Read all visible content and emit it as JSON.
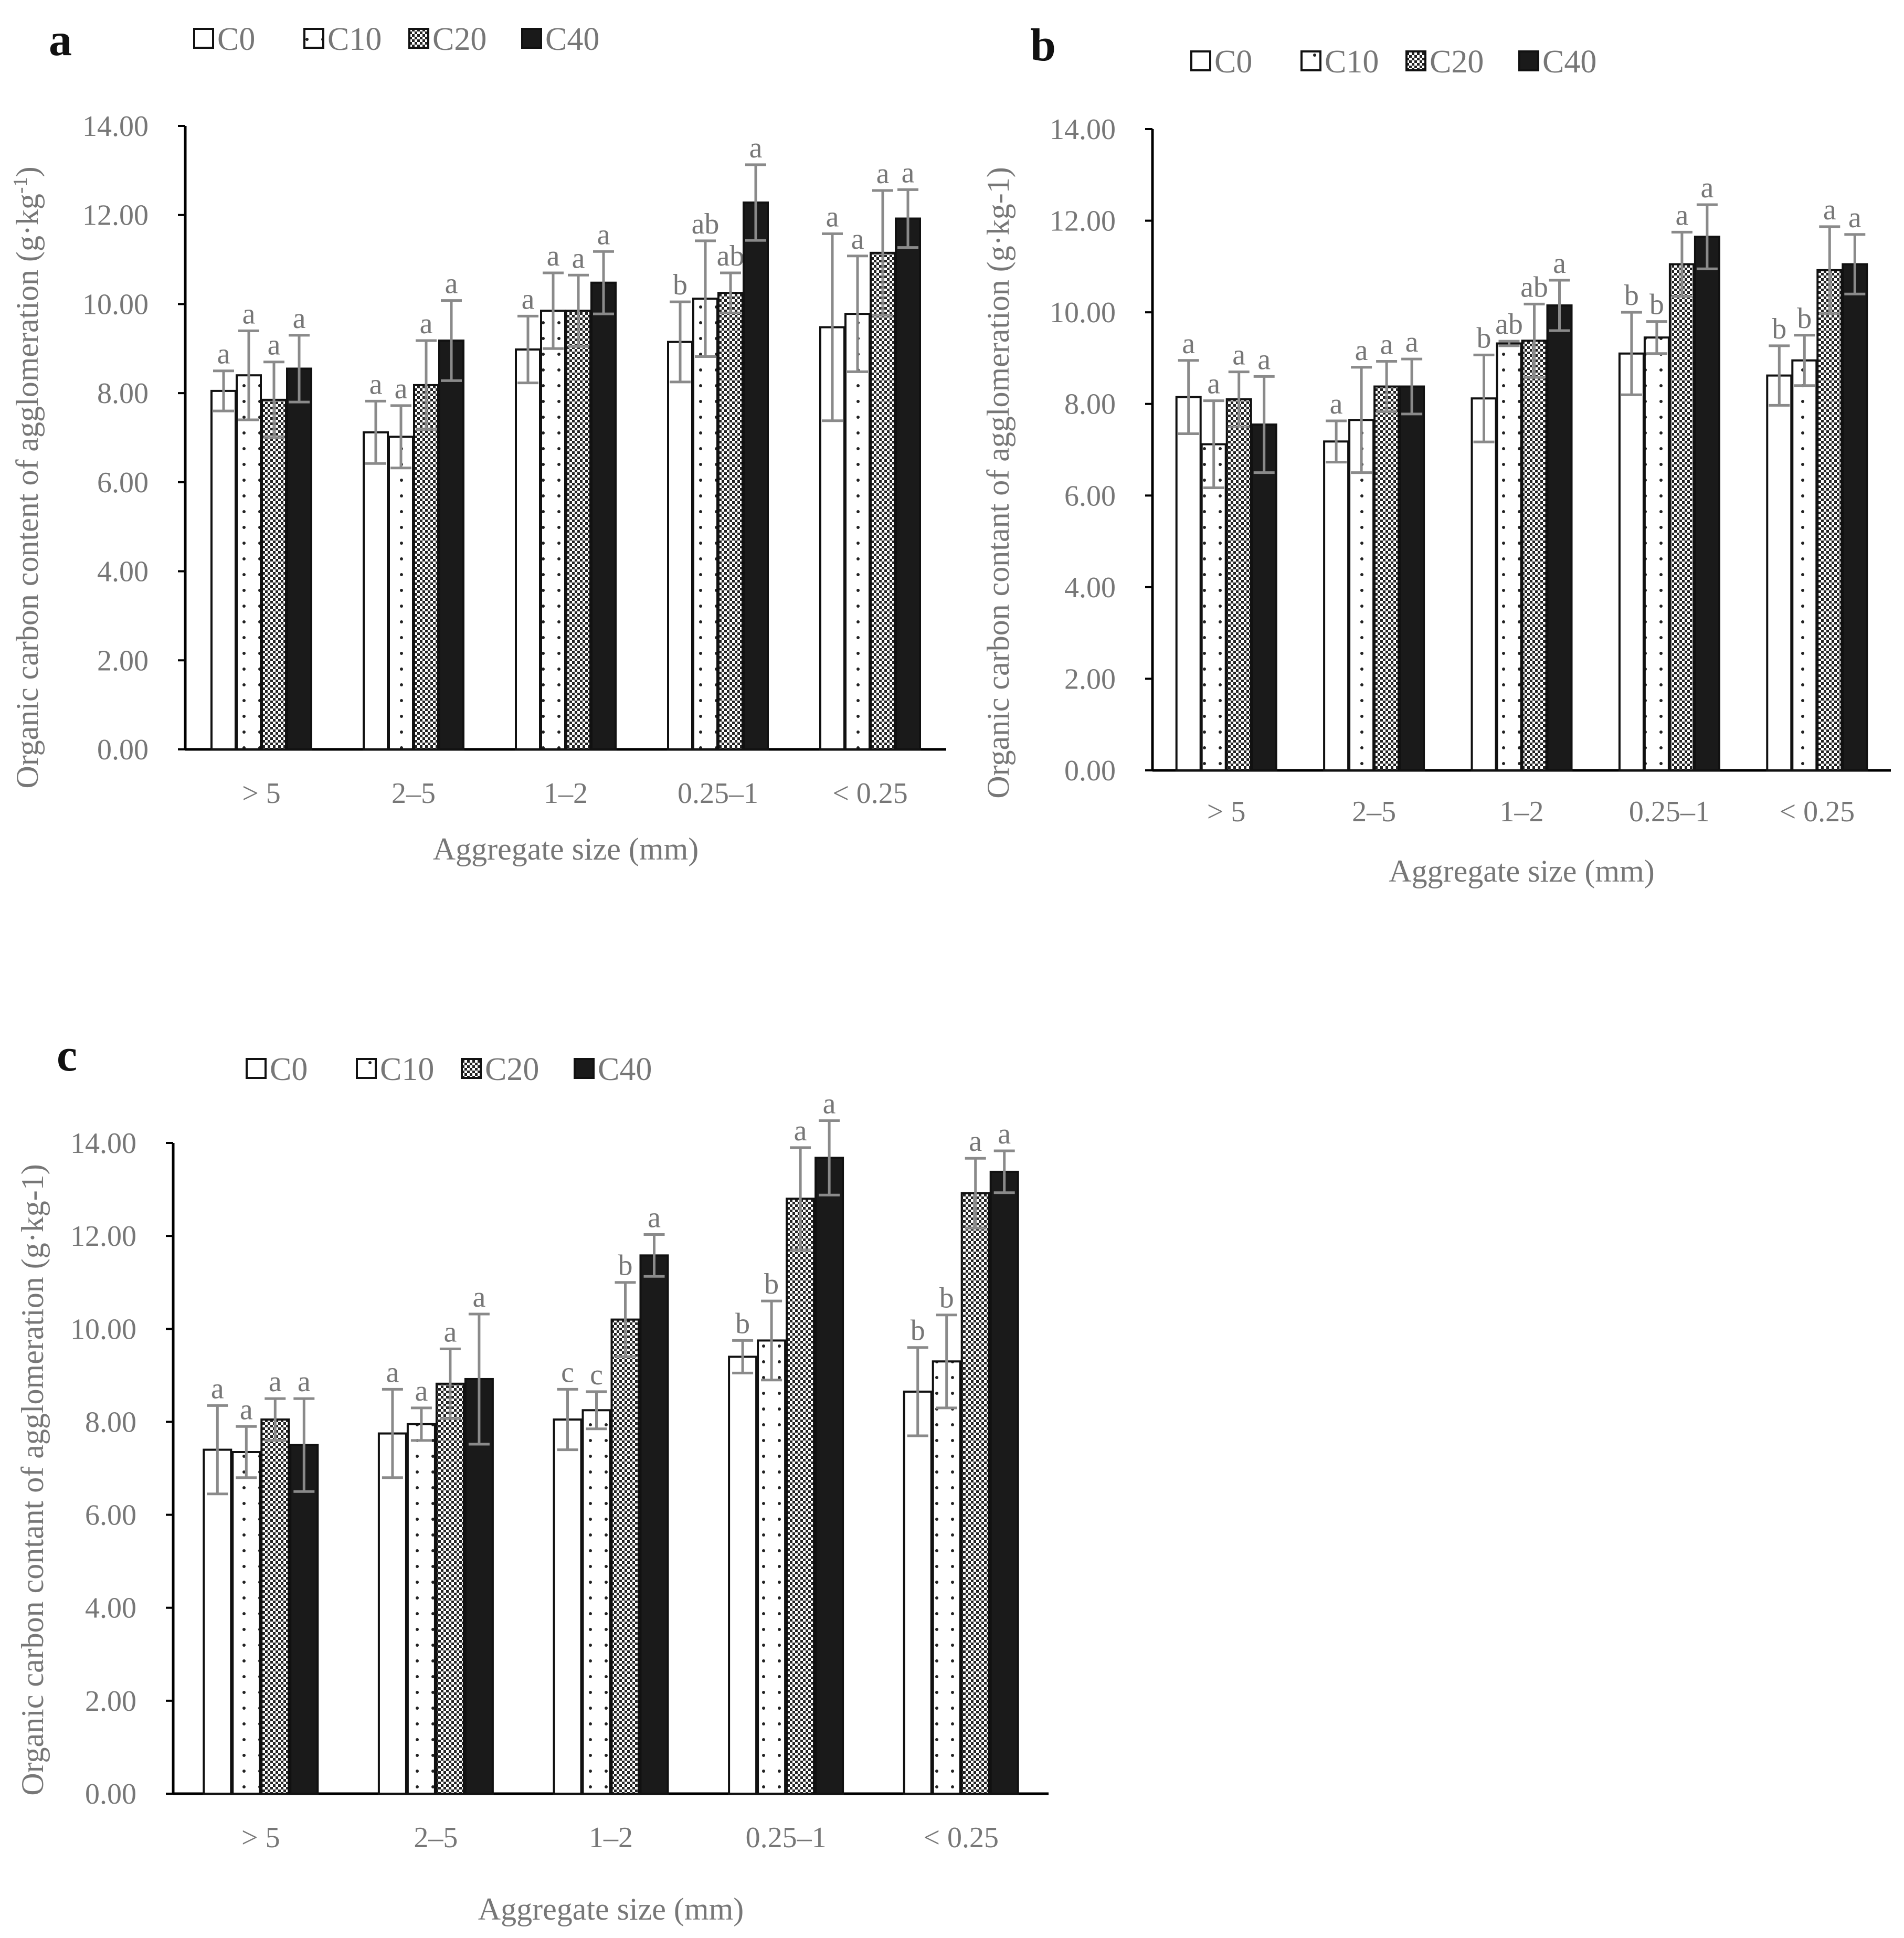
{
  "figure": {
    "xlabel": "Aggregate size (mm)",
    "ylabel_a": "Organic carbon content of agglomeration (g·kg-1)",
    "ylabel_a_base": "Organic carbon content of agglomeration (g·kg",
    "ylabel_a_sup": "-1",
    "ylabel_a_close": ")",
    "ylabel_bc": "Organic carbon contant of agglomeration (g·kg-1)",
    "colors": {
      "axis": "#000000",
      "text": "#777777",
      "error": "#8a8a8a",
      "dark": "#1a1a1a"
    }
  },
  "chart_data": [
    {
      "panel": "a",
      "type": "bar",
      "ylabel": "Organic carbon content of agglomeration (g·kg-1)",
      "xlabel": "Aggregate size (mm)",
      "ylim": [
        0,
        14
      ],
      "yticks": [
        "0.00",
        "2.00",
        "4.00",
        "6.00",
        "8.00",
        "10.00",
        "12.00",
        "14.00"
      ],
      "categories": [
        "> 5",
        "2–5",
        "1–2",
        "0.25–1",
        "< 0.25"
      ],
      "legend": [
        "C0",
        "C10",
        "C20",
        "C40"
      ],
      "series": [
        {
          "name": "C0",
          "pattern": "open",
          "values": [
            8.05,
            7.12,
            8.98,
            9.15,
            9.48
          ],
          "errors": [
            0.45,
            0.7,
            0.75,
            0.9,
            2.1
          ],
          "letters": [
            "a",
            "a",
            "a",
            "b",
            "a"
          ]
        },
        {
          "name": "C10",
          "pattern": "dotted",
          "values": [
            8.4,
            7.02,
            9.85,
            10.12,
            9.78
          ],
          "errors": [
            1.0,
            0.7,
            0.85,
            1.3,
            1.3
          ],
          "letters": [
            "a",
            "a",
            "a",
            "ab",
            "a"
          ]
        },
        {
          "name": "C20",
          "pattern": "check",
          "values": [
            7.85,
            8.18,
            9.85,
            10.25,
            11.15
          ],
          "errors": [
            0.85,
            1.0,
            0.8,
            0.45,
            1.4
          ],
          "letters": [
            "a",
            "a",
            "a",
            "ab",
            "a"
          ]
        },
        {
          "name": "C40",
          "pattern": "solid",
          "values": [
            8.55,
            9.18,
            10.48,
            12.28,
            11.92
          ],
          "errors": [
            0.75,
            0.9,
            0.7,
            0.85,
            0.65
          ],
          "letters": [
            "a",
            "a",
            "a",
            "a",
            "a"
          ]
        }
      ]
    },
    {
      "panel": "b",
      "type": "bar",
      "ylabel": "Organic carbon contant of agglomeration (g·kg-1)",
      "xlabel": "Aggregate size (mm)",
      "ylim": [
        0,
        14
      ],
      "yticks": [
        "0.00",
        "2.00",
        "4.00",
        "6.00",
        "8.00",
        "10.00",
        "12.00",
        "14.00"
      ],
      "categories": [
        "> 5",
        "2–5",
        "1–2",
        "0.25–1",
        "< 0.25"
      ],
      "legend": [
        "C0",
        "C10",
        "C20",
        "C40"
      ],
      "series": [
        {
          "name": "C0",
          "pattern": "open",
          "values": [
            8.15,
            7.18,
            8.12,
            9.1,
            8.62
          ],
          "errors": [
            0.8,
            0.45,
            0.95,
            0.9,
            0.65
          ],
          "letters": [
            "a",
            "a",
            "b",
            "b",
            "b"
          ]
        },
        {
          "name": "C10",
          "pattern": "dotted",
          "values": [
            7.12,
            7.65,
            9.32,
            9.45,
            8.95
          ],
          "errors": [
            0.95,
            1.15,
            0.05,
            0.35,
            0.55
          ],
          "letters": [
            "a",
            "a",
            "ab",
            "b",
            "b"
          ]
        },
        {
          "name": "C20",
          "pattern": "check",
          "values": [
            8.1,
            8.38,
            9.38,
            11.05,
            10.92
          ],
          "errors": [
            0.6,
            0.55,
            0.8,
            0.7,
            0.95
          ],
          "letters": [
            "a",
            "a",
            "ab",
            "a",
            "a"
          ]
        },
        {
          "name": "C40",
          "pattern": "solid",
          "values": [
            7.55,
            8.38,
            10.15,
            11.65,
            11.05
          ],
          "errors": [
            1.05,
            0.6,
            0.55,
            0.7,
            0.65
          ],
          "letters": [
            "a",
            "a",
            "a",
            "a",
            "a"
          ]
        }
      ]
    },
    {
      "panel": "c",
      "type": "bar",
      "ylabel": "Organic carbon contant of agglomeration (g·kg-1)",
      "xlabel": "Aggregate size (mm)",
      "ylim": [
        0,
        14
      ],
      "yticks": [
        "0.00",
        "2.00",
        "4.00",
        "6.00",
        "8.00",
        "10.00",
        "12.00",
        "14.00"
      ],
      "categories": [
        "> 5",
        "2–5",
        "1–2",
        "0.25–1",
        "< 0.25"
      ],
      "legend": [
        "C0",
        "C10",
        "C20",
        "C40"
      ],
      "series": [
        {
          "name": "C0",
          "pattern": "open",
          "values": [
            7.4,
            7.75,
            8.05,
            9.4,
            8.65
          ],
          "errors": [
            0.95,
            0.95,
            0.65,
            0.35,
            0.95
          ],
          "letters": [
            "a",
            "a",
            "c",
            "b",
            "b"
          ]
        },
        {
          "name": "C10",
          "pattern": "dotted",
          "values": [
            7.35,
            7.95,
            8.25,
            9.75,
            9.3
          ],
          "errors": [
            0.55,
            0.35,
            0.4,
            0.85,
            1.0
          ],
          "letters": [
            "a",
            "a",
            "c",
            "b",
            "b"
          ]
        },
        {
          "name": "C20",
          "pattern": "check",
          "values": [
            8.05,
            8.82,
            10.2,
            12.8,
            12.92
          ],
          "errors": [
            0.45,
            0.75,
            0.8,
            1.1,
            0.75
          ],
          "letters": [
            "a",
            "a",
            "b",
            "a",
            "a"
          ]
        },
        {
          "name": "C40",
          "pattern": "solid",
          "values": [
            7.5,
            8.92,
            11.58,
            13.68,
            13.38
          ],
          "errors": [
            1.0,
            1.4,
            0.45,
            0.8,
            0.45
          ],
          "letters": [
            "a",
            "a",
            "a",
            "a",
            "a"
          ]
        }
      ]
    }
  ]
}
